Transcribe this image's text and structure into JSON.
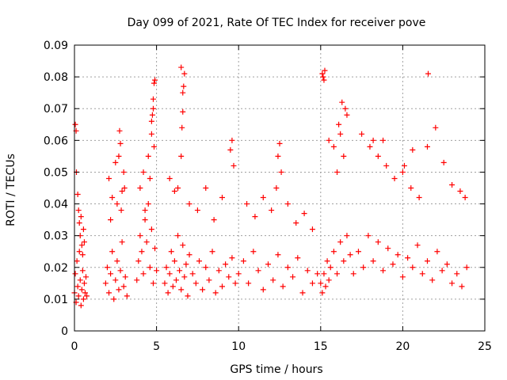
{
  "chart_data": {
    "type": "scatter",
    "title": "Day 099 of 2021, Rate Of TEC Index for receiver pove",
    "xlabel": "GPS time / hours",
    "ylabel": "ROTI / TECUs",
    "xlim": [
      0,
      25
    ],
    "ylim": [
      0,
      0.09
    ],
    "x_ticks": [
      "0",
      "5",
      "10",
      "15",
      "20",
      "25"
    ],
    "y_ticks": [
      "0",
      "0.01",
      "0.02",
      "0.03",
      "0.04",
      "0.05",
      "0.06",
      "0.07",
      "0.08",
      "0.09"
    ],
    "grid": true,
    "legend": "none",
    "marker": "+",
    "color": "#ff0000",
    "series": [
      {
        "x": [
          0.0,
          0.05,
          0.1,
          0.15,
          0.2,
          0.25,
          0.3,
          0.35,
          0.4,
          0.45,
          0.5,
          0.55,
          0.6,
          0.65,
          0.7,
          0.75,
          0.05,
          0.1,
          0.12,
          0.2,
          0.25,
          0.3,
          0.35,
          0.4,
          0.45,
          0.5,
          0.55,
          0.6,
          1.9,
          2.0,
          2.1,
          2.2,
          2.3,
          2.4,
          2.5,
          2.6,
          2.7,
          2.8,
          2.9,
          3.0,
          3.1,
          3.2,
          2.1,
          2.3,
          2.5,
          2.7,
          2.75,
          2.8,
          2.9,
          3.0,
          2.2,
          2.6,
          2.85,
          3.05,
          3.8,
          3.9,
          4.0,
          4.1,
          4.2,
          4.3,
          4.4,
          4.5,
          4.6,
          4.7,
          4.8,
          4.9,
          5.0,
          4.0,
          4.2,
          4.3,
          4.5,
          4.6,
          4.7,
          4.75,
          4.8,
          4.85,
          4.9,
          4.7,
          4.8,
          4.85,
          5.5,
          5.6,
          5.7,
          5.8,
          5.9,
          6.0,
          6.1,
          6.2,
          6.3,
          6.4,
          6.5,
          6.6,
          6.7,
          6.8,
          6.9,
          7.0,
          7.2,
          7.4,
          7.6,
          7.8,
          8.0,
          8.2,
          8.4,
          8.6,
          8.8,
          9.0,
          9.2,
          9.4,
          9.6,
          9.8,
          6.3,
          6.5,
          6.55,
          6.6,
          6.65,
          6.7,
          6.5,
          6.6,
          7.0,
          7.5,
          8.0,
          8.5,
          9.0,
          9.5,
          9.6,
          9.7,
          5.8,
          6.1,
          10.0,
          10.3,
          10.6,
          10.9,
          11.2,
          11.5,
          11.8,
          12.1,
          12.4,
          12.7,
          13.0,
          13.3,
          13.6,
          13.9,
          14.2,
          14.5,
          14.8,
          10.5,
          11.0,
          11.5,
          12.0,
          12.3,
          12.5,
          13.0,
          13.5,
          14.0,
          14.5,
          12.4,
          12.6,
          15.0,
          15.1,
          15.2,
          15.3,
          15.4,
          15.5,
          15.6,
          15.8,
          16.0,
          16.2,
          16.4,
          16.6,
          16.8,
          15.1,
          15.15,
          15.2,
          15.25,
          15.5,
          15.8,
          16.0,
          16.1,
          16.3,
          16.5,
          16.6,
          16.2,
          16.4,
          17.0,
          17.3,
          17.6,
          17.9,
          18.2,
          18.5,
          18.8,
          19.1,
          19.4,
          19.7,
          20.0,
          20.3,
          20.6,
          20.9,
          21.2,
          21.5,
          21.8,
          22.1,
          22.4,
          22.7,
          23.0,
          23.3,
          23.6,
          23.9,
          17.5,
          18.0,
          18.2,
          18.5,
          19.0,
          19.5,
          20.0,
          20.5,
          21.0,
          21.5,
          21.55,
          22.0,
          22.5,
          23.0,
          23.5,
          23.8,
          20.1,
          20.6,
          18.8
        ],
        "y": [
          0.012,
          0.018,
          0.009,
          0.022,
          0.014,
          0.011,
          0.025,
          0.016,
          0.008,
          0.013,
          0.019,
          0.01,
          0.015,
          0.012,
          0.017,
          0.011,
          0.065,
          0.063,
          0.05,
          0.043,
          0.038,
          0.034,
          0.03,
          0.036,
          0.027,
          0.024,
          0.032,
          0.028,
          0.015,
          0.02,
          0.012,
          0.018,
          0.025,
          0.01,
          0.016,
          0.022,
          0.013,
          0.019,
          0.028,
          0.014,
          0.017,
          0.011,
          0.048,
          0.042,
          0.053,
          0.055,
          0.063,
          0.059,
          0.044,
          0.05,
          0.035,
          0.04,
          0.038,
          0.045,
          0.016,
          0.022,
          0.03,
          0.025,
          0.018,
          0.035,
          0.028,
          0.04,
          0.02,
          0.032,
          0.015,
          0.026,
          0.019,
          0.045,
          0.05,
          0.038,
          0.055,
          0.048,
          0.062,
          0.068,
          0.073,
          0.078,
          0.079,
          0.066,
          0.07,
          0.058,
          0.015,
          0.02,
          0.012,
          0.018,
          0.025,
          0.014,
          0.022,
          0.016,
          0.03,
          0.019,
          0.013,
          0.027,
          0.017,
          0.021,
          0.011,
          0.024,
          0.018,
          0.015,
          0.022,
          0.013,
          0.02,
          0.016,
          0.025,
          0.012,
          0.019,
          0.014,
          0.021,
          0.017,
          0.023,
          0.015,
          0.045,
          0.055,
          0.064,
          0.069,
          0.077,
          0.081,
          0.083,
          0.075,
          0.04,
          0.038,
          0.045,
          0.035,
          0.042,
          0.057,
          0.06,
          0.052,
          0.048,
          0.044,
          0.018,
          0.022,
          0.015,
          0.025,
          0.019,
          0.013,
          0.021,
          0.016,
          0.024,
          0.014,
          0.02,
          0.017,
          0.023,
          0.012,
          0.019,
          0.015,
          0.018,
          0.04,
          0.036,
          0.042,
          0.038,
          0.045,
          0.059,
          0.04,
          0.034,
          0.037,
          0.032,
          0.055,
          0.05,
          0.015,
          0.012,
          0.018,
          0.014,
          0.022,
          0.016,
          0.02,
          0.025,
          0.018,
          0.028,
          0.022,
          0.03,
          0.024,
          0.081,
          0.08,
          0.079,
          0.082,
          0.06,
          0.058,
          0.05,
          0.065,
          0.072,
          0.07,
          0.068,
          0.062,
          0.055,
          0.018,
          0.025,
          0.02,
          0.03,
          0.022,
          0.028,
          0.019,
          0.026,
          0.021,
          0.024,
          0.017,
          0.023,
          0.02,
          0.027,
          0.018,
          0.022,
          0.016,
          0.025,
          0.019,
          0.021,
          0.015,
          0.018,
          0.014,
          0.02,
          0.062,
          0.058,
          0.06,
          0.055,
          0.052,
          0.048,
          0.05,
          0.045,
          0.042,
          0.058,
          0.081,
          0.064,
          0.053,
          0.046,
          0.044,
          0.042,
          0.052,
          0.057,
          0.06
        ]
      }
    ]
  }
}
